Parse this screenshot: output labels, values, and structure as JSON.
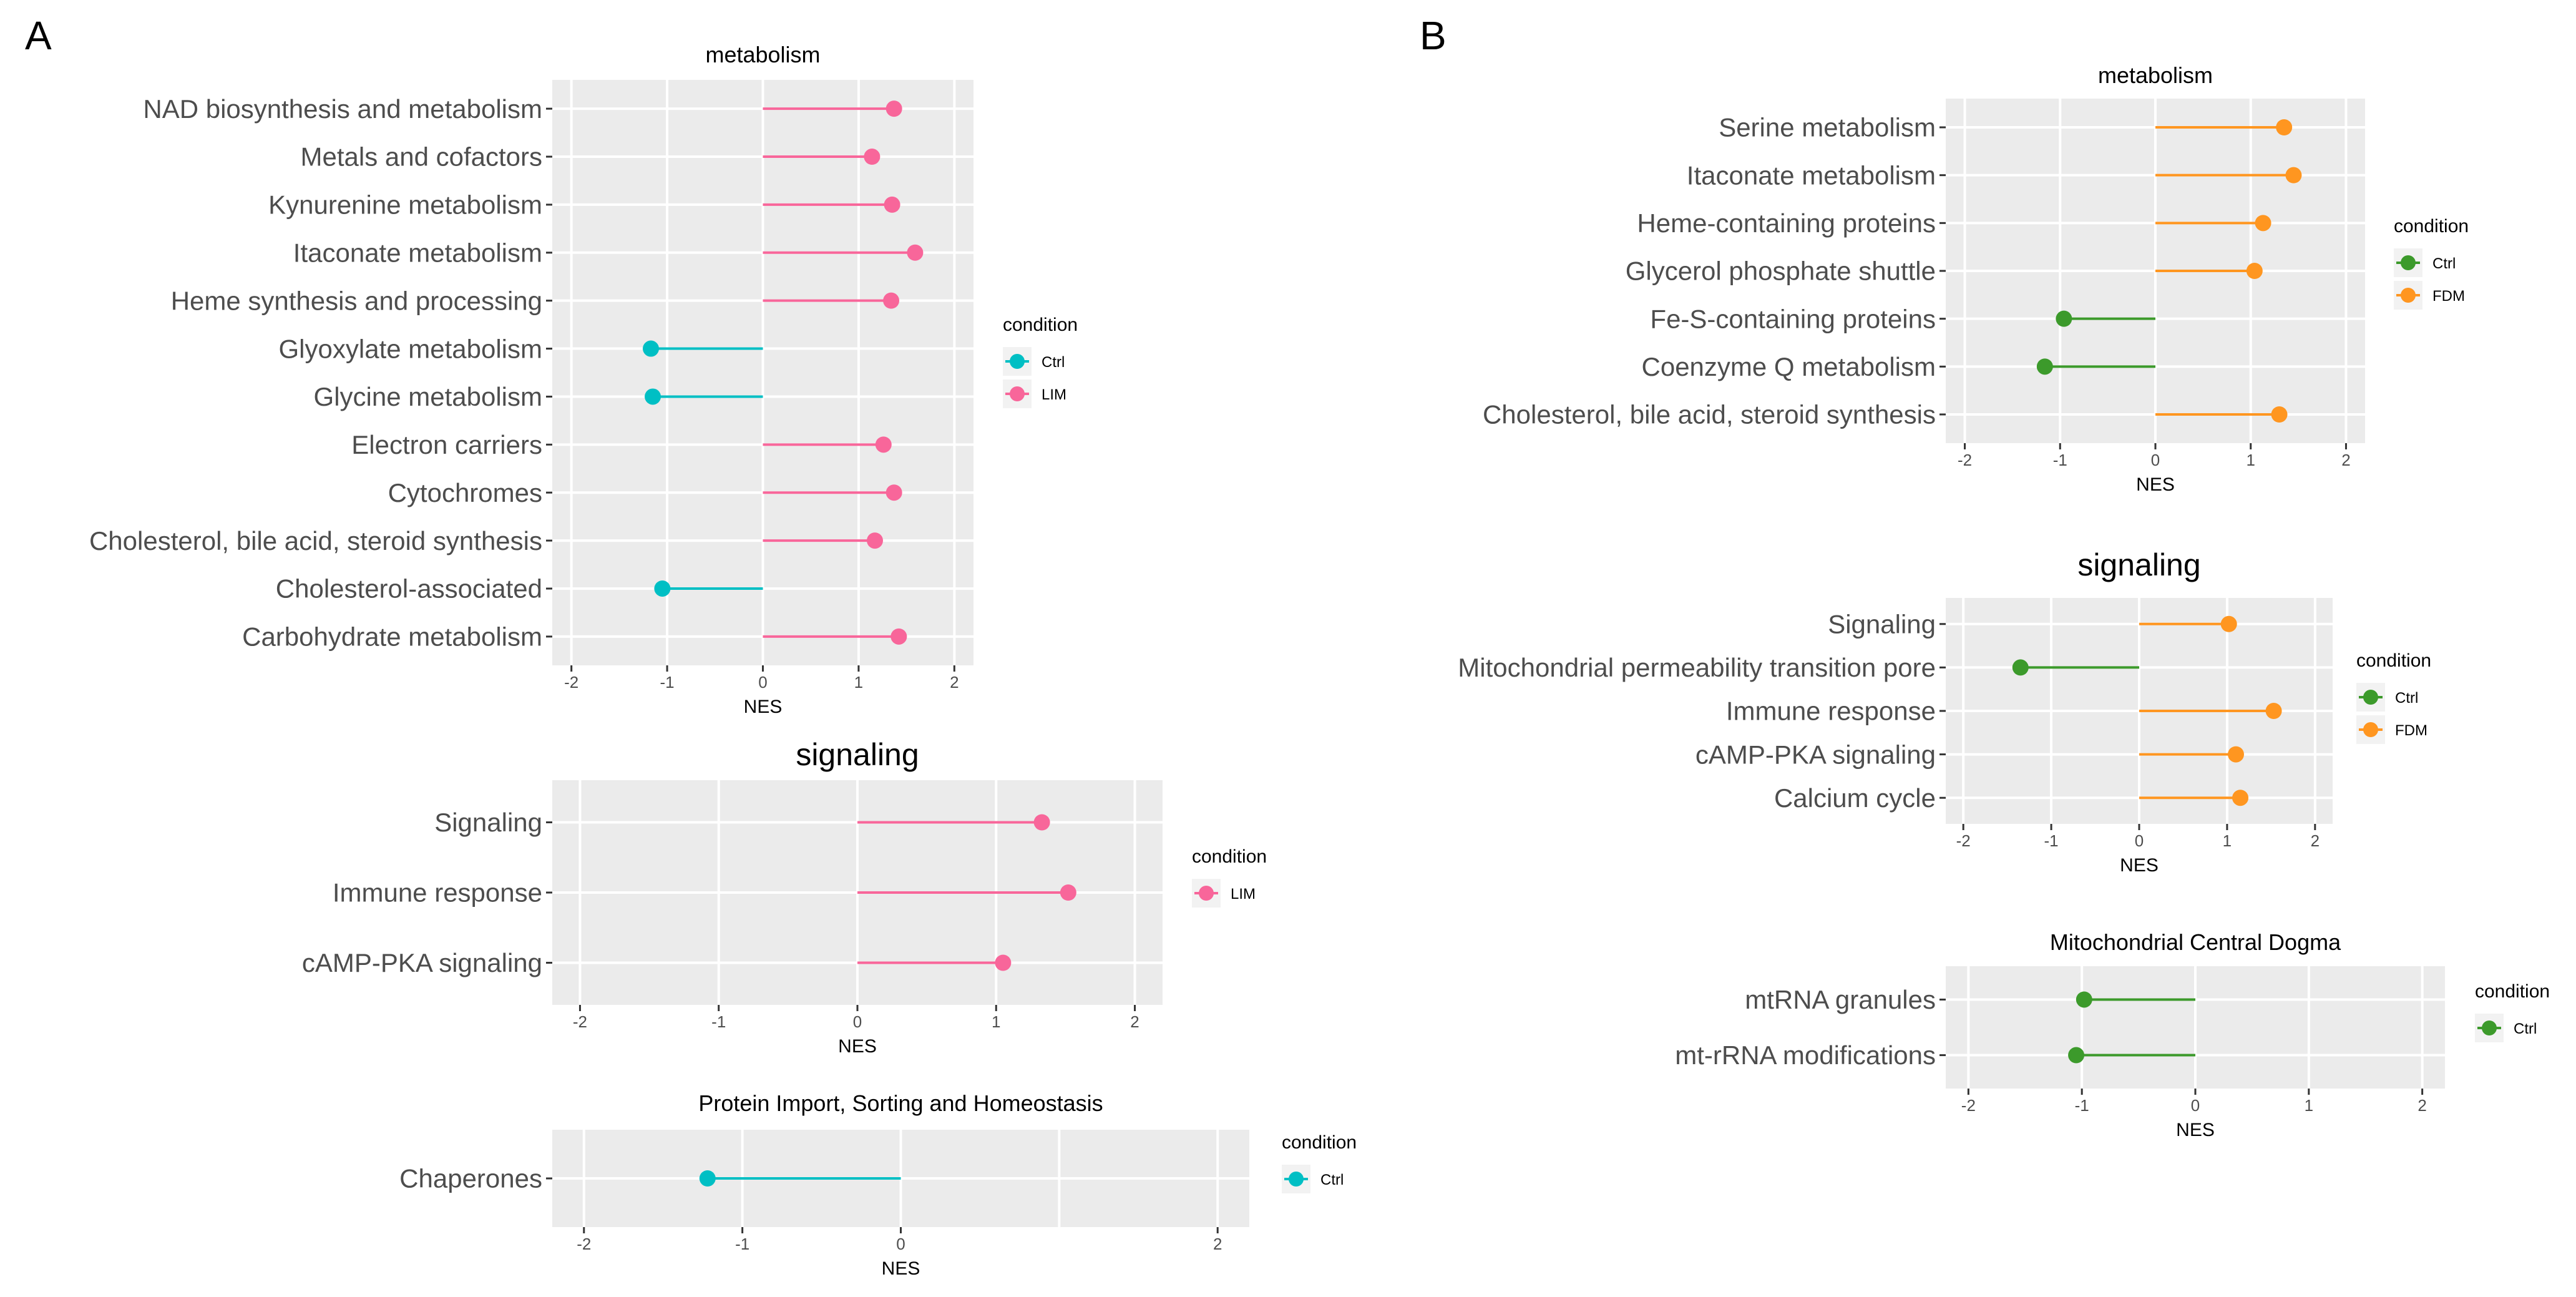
{
  "panels": [
    {
      "label": "A"
    },
    {
      "label": "B"
    }
  ],
  "colors": {
    "ctrl_teal": "#00BFC4",
    "lim_pink": "#F8669A",
    "ctrl_green": "#3C9A2B",
    "fdm_orange": "#FF9620"
  },
  "chart_data": [
    {
      "type": "lollipop",
      "panel": "A",
      "title": "metabolism",
      "xlabel": "NES",
      "ylabel": "",
      "xlim": [
        -2.2,
        2.2
      ],
      "xticks": [
        -2,
        -1,
        0,
        1,
        2
      ],
      "grid": true,
      "categories": [
        "NAD biosynthesis and metabolism",
        "Metals and cofactors",
        "Kynurenine metabolism",
        "Itaconate metabolism",
        "Heme synthesis and processing",
        "Glyoxylate metabolism",
        "Glycine metabolism",
        "Electron carriers",
        "Cytochromes",
        "Cholesterol, bile acid, steroid synthesis",
        "Cholesterol-associated",
        "Carbohydrate metabolism"
      ],
      "values": [
        1.37,
        1.14,
        1.35,
        1.59,
        1.34,
        -1.17,
        -1.15,
        1.26,
        1.37,
        1.17,
        -1.05,
        1.42
      ],
      "conditions": [
        "LIM",
        "LIM",
        "LIM",
        "LIM",
        "LIM",
        "Ctrl",
        "Ctrl",
        "LIM",
        "LIM",
        "LIM",
        "Ctrl",
        "LIM"
      ],
      "legend": {
        "title": "condition",
        "entries": [
          {
            "name": "Ctrl",
            "color": "#00BFC4"
          },
          {
            "name": "LIM",
            "color": "#F8669A"
          }
        ]
      }
    },
    {
      "type": "lollipop",
      "panel": "A",
      "title": "signaling",
      "xlabel": "NES",
      "ylabel": "",
      "xlim": [
        -2.2,
        2.2
      ],
      "xticks": [
        -2,
        -1,
        0,
        1,
        2
      ],
      "grid": true,
      "categories": [
        "Signaling",
        "Immune response",
        "cAMP-PKA signaling"
      ],
      "values": [
        1.33,
        1.52,
        1.05
      ],
      "conditions": [
        "LIM",
        "LIM",
        "LIM"
      ],
      "legend": {
        "title": "condition",
        "entries": [
          {
            "name": "LIM",
            "color": "#F8669A"
          }
        ]
      }
    },
    {
      "type": "lollipop",
      "panel": "A",
      "title": "Protein Import, Sorting and Homeostasis",
      "xlabel": "NES",
      "ylabel": "",
      "xlim": [
        -2.2,
        2.2
      ],
      "xticks": [
        -2,
        -1,
        0,
        2
      ],
      "grid": true,
      "categories": [
        "Chaperones"
      ],
      "values": [
        -1.22
      ],
      "conditions": [
        "Ctrl"
      ],
      "legend": {
        "title": "condition",
        "entries": [
          {
            "name": "Ctrl",
            "color": "#00BFC4"
          }
        ]
      }
    },
    {
      "type": "lollipop",
      "panel": "B",
      "title": "metabolism",
      "xlabel": "NES",
      "ylabel": "",
      "xlim": [
        -2.2,
        2.2
      ],
      "xticks": [
        -2,
        -1,
        0,
        1,
        2
      ],
      "grid": true,
      "categories": [
        "Serine metabolism",
        "Itaconate metabolism",
        "Heme-containing proteins",
        "Glycerol phosphate shuttle",
        "Fe-S-containing proteins",
        "Coenzyme Q metabolism",
        "Cholesterol, bile acid, steroid synthesis"
      ],
      "values": [
        1.35,
        1.45,
        1.13,
        1.04,
        -0.96,
        -1.16,
        1.3
      ],
      "conditions": [
        "FDM",
        "FDM",
        "FDM",
        "FDM",
        "Ctrl",
        "Ctrl",
        "FDM"
      ],
      "legend": {
        "title": "condition",
        "entries": [
          {
            "name": "Ctrl",
            "color": "#3C9A2B"
          },
          {
            "name": "FDM",
            "color": "#FF9620"
          }
        ]
      }
    },
    {
      "type": "lollipop",
      "panel": "B",
      "title": "signaling",
      "xlabel": "NES",
      "ylabel": "",
      "xlim": [
        -2.2,
        2.2
      ],
      "xticks": [
        -2,
        -1,
        0,
        1,
        2
      ],
      "grid": true,
      "categories": [
        "Signaling",
        "Mitochondrial permeability transition pore",
        "Immune response",
        "cAMP-PKA signaling",
        "Calcium cycle"
      ],
      "values": [
        1.02,
        -1.35,
        1.53,
        1.1,
        1.15
      ],
      "conditions": [
        "FDM",
        "Ctrl",
        "FDM",
        "FDM",
        "FDM"
      ],
      "legend": {
        "title": "condition",
        "entries": [
          {
            "name": "Ctrl",
            "color": "#3C9A2B"
          },
          {
            "name": "FDM",
            "color": "#FF9620"
          }
        ]
      }
    },
    {
      "type": "lollipop",
      "panel": "B",
      "title": "Mitochondrial Central Dogma",
      "xlabel": "NES",
      "ylabel": "",
      "xlim": [
        -2.2,
        2.2
      ],
      "xticks": [
        -2,
        -1,
        0,
        1,
        2
      ],
      "grid": true,
      "categories": [
        "mtRNA granules",
        "mt-rRNA modifications"
      ],
      "values": [
        -0.98,
        -1.05
      ],
      "conditions": [
        "Ctrl",
        "Ctrl"
      ],
      "legend": {
        "title": "condition",
        "entries": [
          {
            "name": "Ctrl",
            "color": "#3C9A2B"
          }
        ]
      }
    }
  ]
}
